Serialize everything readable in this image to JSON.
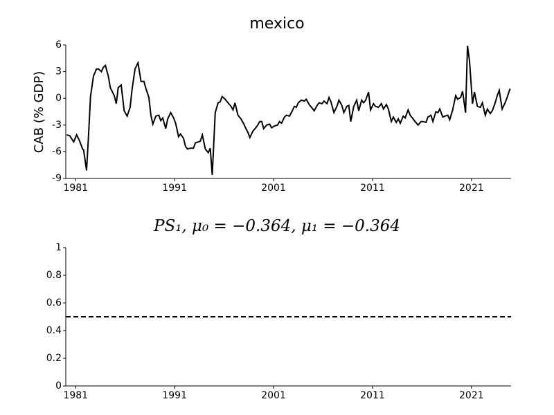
{
  "chart_data": [
    {
      "type": "line",
      "title": "mexico",
      "y_label": "CAB (% GDP)",
      "color": "#000000",
      "linestyle": "solid",
      "x": [
        1980.1,
        1980.4,
        1980.8,
        1981.1,
        1981.4,
        1981.7,
        1981.8,
        1982.1,
        1982.3,
        1982.5,
        1982.8,
        1983.1,
        1983.3,
        1983.6,
        1983.8,
        1984.0,
        1984.3,
        1984.5,
        1984.9,
        1985.1,
        1985.3,
        1985.6,
        1985.9,
        1986.2,
        1986.5,
        1986.7,
        1987.0,
        1987.3,
        1987.6,
        1987.9,
        1988.1,
        1988.4,
        1988.6,
        1988.8,
        1989.1,
        1989.4,
        1989.6,
        1989.8,
        1990.1,
        1990.3,
        1990.6,
        1990.9,
        1991.1,
        1991.4,
        1991.6,
        1991.9,
        1992.1,
        1992.3,
        1992.6,
        1992.9,
        1993.1,
        1993.4,
        1993.6,
        1993.8,
        1994.1,
        1994.4,
        1994.6,
        1994.8,
        1995.1,
        1995.4,
        1995.6,
        1995.8,
        1996.1,
        1996.4,
        1996.7,
        1996.9,
        1997.1,
        1997.4,
        1997.7,
        1998.0,
        1998.2,
        1998.4,
        1998.6,
        1998.9,
        1999.2,
        1999.4,
        1999.6,
        1999.8,
        2000.0,
        2000.3,
        2000.6,
        2000.8,
        2001.1,
        2001.4,
        2001.6,
        2001.8,
        2002.1,
        2002.3,
        2002.6,
        2002.8,
        2003.1,
        2003.3,
        2003.5,
        2003.8,
        2004.1,
        2004.3,
        2004.6,
        2004.9,
        2005.1,
        2005.4,
        2005.6,
        2005.9,
        2006.1,
        2006.4,
        2006.6,
        2006.8,
        2007.1,
        2007.4,
        2007.6,
        2007.9,
        2008.1,
        2008.4,
        2008.6,
        2008.8,
        2009.1,
        2009.4,
        2009.6,
        2009.9,
        2010.1,
        2010.3,
        2010.6,
        2010.8,
        2011.1,
        2011.3,
        2011.6,
        2011.9,
        2012.1,
        2012.4,
        2012.6,
        2012.9,
        2013.1,
        2013.4,
        2013.6,
        2013.8,
        2014.1,
        2014.3,
        2014.6,
        2014.8,
        2015.1,
        2015.3,
        2015.6,
        2015.9,
        2016.1,
        2016.4,
        2016.6,
        2016.9,
        2017.1,
        2017.4,
        2017.6,
        2017.8,
        2018.1,
        2018.3,
        2018.6,
        2018.8,
        2019.1,
        2019.4,
        2019.6,
        2019.9,
        2020.1,
        2020.4,
        2020.6,
        2020.8,
        2021.1,
        2021.3,
        2021.6,
        2021.9,
        2022.1,
        2022.4,
        2022.6,
        2022.9,
        2023.1,
        2023.4,
        2023.6,
        2023.8,
        2024.1,
        2024.4,
        2024.6,
        2024.9
      ],
      "values": [
        -4.1,
        -4.2,
        -4.9,
        -4.1,
        -4.8,
        -5.7,
        -5.8,
        -8.1,
        -4.1,
        0.2,
        2.5,
        3.3,
        3.3,
        3.0,
        3.5,
        3.7,
        2.5,
        1.2,
        0.3,
        -0.6,
        1.2,
        1.5,
        -1.4,
        -2.0,
        -1.0,
        1.0,
        3.3,
        4.0,
        1.9,
        1.9,
        1.1,
        0.1,
        -1.9,
        -2.9,
        -2.0,
        -1.9,
        -2.5,
        -2.2,
        -3.4,
        -2.3,
        -1.6,
        -2.2,
        -2.8,
        -4.3,
        -4.0,
        -4.5,
        -5.4,
        -5.7,
        -5.6,
        -5.6,
        -5.0,
        -4.9,
        -4.8,
        -4.1,
        -5.7,
        -6.1,
        -5.6,
        -8.6,
        -1.6,
        -0.5,
        -0.4,
        0.2,
        -0.1,
        -0.5,
        -0.9,
        -1.3,
        -0.5,
        -1.9,
        -2.3,
        -2.9,
        -3.4,
        -3.8,
        -4.4,
        -3.7,
        -3.3,
        -3.0,
        -2.6,
        -2.6,
        -3.4,
        -3.0,
        -2.9,
        -3.3,
        -3.1,
        -3.0,
        -2.6,
        -2.8,
        -2.1,
        -1.9,
        -2.0,
        -1.6,
        -0.9,
        -1.0,
        -0.5,
        -0.2,
        -0.3,
        -0.1,
        -0.7,
        -1.1,
        -1.4,
        -0.8,
        -0.5,
        -0.6,
        -0.3,
        -0.6,
        0.1,
        -0.4,
        -1.6,
        -0.9,
        -0.2,
        -0.8,
        -1.6,
        -0.9,
        -0.8,
        -2.6,
        -0.9,
        -0.2,
        -1.4,
        -0.2,
        -0.5,
        -0.2,
        0.7,
        -1.3,
        -0.6,
        -0.9,
        -1.0,
        -0.6,
        -1.2,
        -0.7,
        -1.2,
        -2.6,
        -2.1,
        -2.7,
        -2.3,
        -2.8,
        -2.0,
        -2.2,
        -1.3,
        -1.9,
        -2.3,
        -2.6,
        -3.0,
        -2.6,
        -2.6,
        -2.7,
        -2.1,
        -1.9,
        -2.6,
        -1.5,
        -1.6,
        -1.2,
        -2.1,
        -2.0,
        -1.9,
        -2.4,
        -1.3,
        0.3,
        -0.1,
        0.1,
        0.8,
        -1.6,
        5.9,
        4.2,
        -0.6,
        0.7,
        -0.9,
        -1.0,
        -0.5,
        -1.9,
        -1.2,
        -1.7,
        -1.4,
        -0.5,
        0.3,
        0.9,
        -1.2,
        -0.5,
        0.1,
        1.1
      ],
      "xlim": [
        1980,
        2025
      ],
      "xticks": [
        1981,
        1991,
        2001,
        2011,
        2021
      ],
      "ylim": [
        -9,
        6
      ],
      "yticks": [
        6,
        3,
        0,
        -3,
        -6,
        -9
      ]
    },
    {
      "type": "line",
      "title": "PS₁, μ₀ = −0.364, μ₁ = −0.364",
      "color": "#000000",
      "linestyle": "dashed",
      "x": [
        1980,
        2025
      ],
      "values": [
        0.5,
        0.5
      ],
      "xlim": [
        1980,
        2025
      ],
      "xticks": [
        1981,
        1991,
        2001,
        2011,
        2021
      ],
      "ylim": [
        0,
        1
      ],
      "yticks": [
        1,
        0.8,
        0.6,
        0.4,
        0.2,
        0
      ]
    }
  ]
}
